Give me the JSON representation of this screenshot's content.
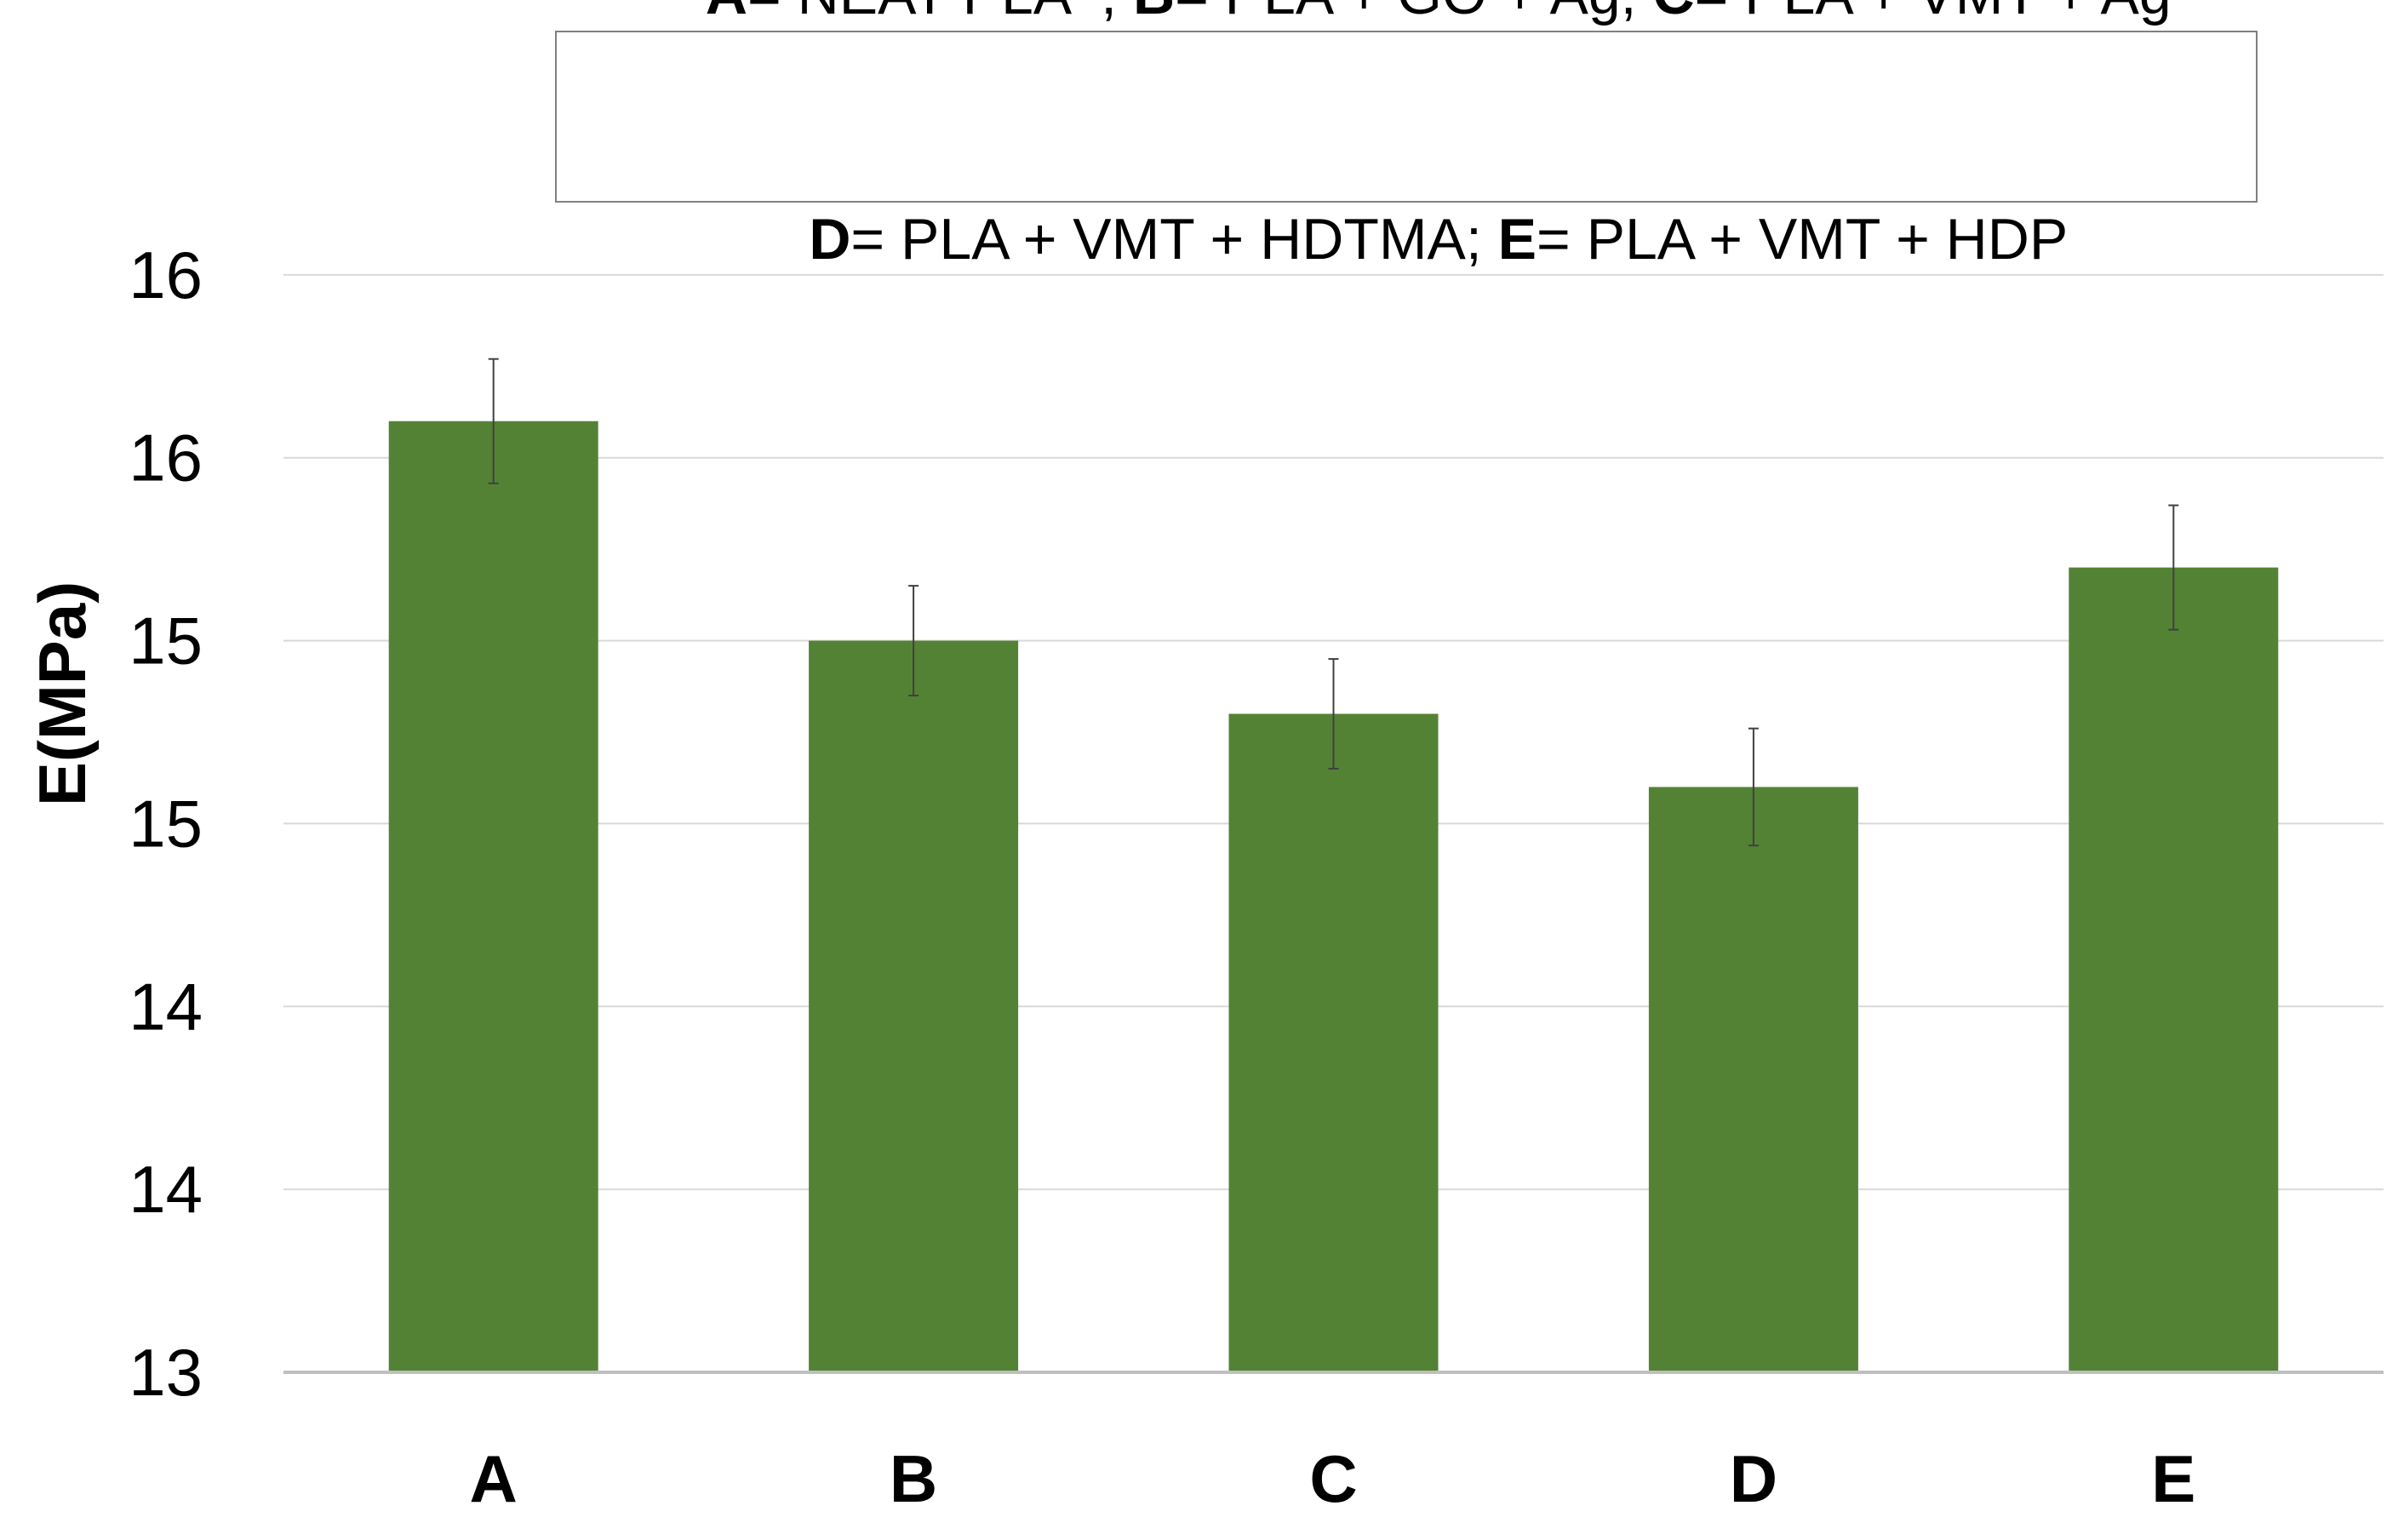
{
  "chart_data": {
    "type": "bar",
    "categories": [
      "A",
      "B",
      "C",
      "D",
      "E"
    ],
    "values": [
      15.6,
      15.0,
      14.8,
      14.6,
      15.2
    ],
    "error": [
      0.17,
      0.15,
      0.15,
      0.16,
      0.17
    ],
    "ylabel": "E(MPa)",
    "ylim": [
      13,
      16.5
    ],
    "y_tick_values": [
      13,
      13.5,
      14,
      14.5,
      15,
      15.5,
      16
    ],
    "y_tick_labels": [
      "13",
      "14",
      "14",
      "15",
      "15",
      "16",
      "16"
    ],
    "grid": true,
    "bar_color": "#548235",
    "errorbar_color": "#404040",
    "gridline_color": "#d9d9d9",
    "axis_line_color": "#bfbfbf",
    "legend_placement": "top-center",
    "legend": {
      "line1": [
        {
          "key": "A",
          "text": "= NEAT PLA  ; "
        },
        {
          "key": "B",
          "text": "= PLA + GO + Ag; "
        },
        {
          "key": "C",
          "text": "= PLA + VMT + Ag"
        }
      ],
      "line2": [
        {
          "key": "D",
          "text": "= PLA + VMT + HDTMA; "
        },
        {
          "key": "E",
          "text": "= PLA + VMT + HDP"
        }
      ]
    }
  }
}
